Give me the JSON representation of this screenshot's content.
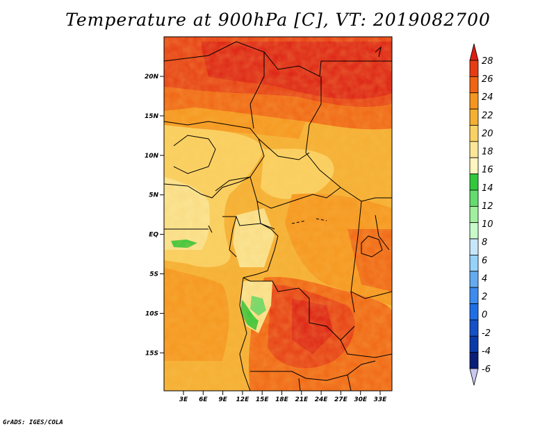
{
  "title": "Temperature at 900hPa [C], VT: 2019082700",
  "credit": "GrADS: IGES/COLA",
  "map": {
    "lat_ticks": [
      "20N",
      "15N",
      "10N",
      "5N",
      "EQ",
      "5S",
      "10S",
      "15S"
    ],
    "lon_ticks": [
      "3E",
      "6E",
      "9E",
      "12E",
      "15E",
      "18E",
      "21E",
      "24E",
      "27E",
      "30E",
      "33E"
    ]
  },
  "colorbar": {
    "labels": [
      "28",
      "26",
      "24",
      "22",
      "20",
      "18",
      "16",
      "14",
      "12",
      "10",
      "8",
      "6",
      "4",
      "2",
      "0",
      "-2",
      "-4",
      "-6"
    ],
    "colors": [
      "#dc1e14",
      "#e63c14",
      "#f06414",
      "#f5961e",
      "#f5af32",
      "#fad264",
      "#fae696",
      "#fff5be",
      "#32c83c",
      "#64dc6e",
      "#a0f0a0",
      "#c8faca",
      "#c8e6fa",
      "#96d2fa",
      "#64aaf0",
      "#3c8cf0",
      "#1e6ee6",
      "#1450c8",
      "#0a3aaa",
      "#0a1e78",
      "#c8c8f0"
    ]
  }
}
